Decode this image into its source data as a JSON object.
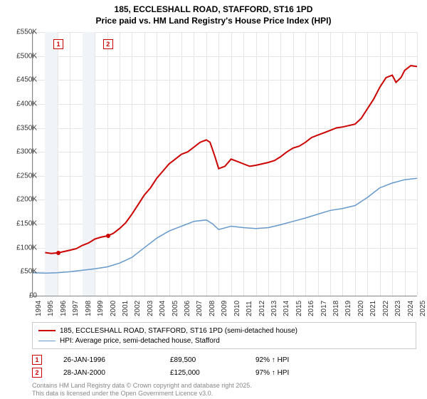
{
  "title_line1": "185, ECCLESHALL ROAD, STAFFORD, ST16 1PD",
  "title_line2": "Price paid vs. HM Land Registry's House Price Index (HPI)",
  "chart": {
    "type": "line",
    "ylim": [
      0,
      550000
    ],
    "ytick_step": 50000,
    "yticks": [
      "£0",
      "£50K",
      "£100K",
      "£150K",
      "£200K",
      "£250K",
      "£300K",
      "£350K",
      "£400K",
      "£450K",
      "£500K",
      "£550K"
    ],
    "xlim": [
      1994,
      2025
    ],
    "xticks": [
      1994,
      1995,
      1996,
      1997,
      1998,
      1999,
      2000,
      2001,
      2002,
      2003,
      2004,
      2005,
      2006,
      2007,
      2008,
      2009,
      2010,
      2011,
      2012,
      2013,
      2014,
      2015,
      2016,
      2017,
      2018,
      2019,
      2020,
      2021,
      2022,
      2023,
      2024,
      2025
    ],
    "background_color": "#ffffff",
    "grid_color": "#e5e5e5",
    "band_color": "#f0f4f8",
    "bands": [
      [
        1995,
        1996
      ],
      [
        1998,
        1999
      ]
    ],
    "series": [
      {
        "name": "property",
        "label": "185, ECCLESHALL ROAD, STAFFORD, ST16 1PD (semi-detached house)",
        "color": "#cc0000",
        "width": 2,
        "data": [
          [
            1995.0,
            90000
          ],
          [
            1995.5,
            88000
          ],
          [
            1996.07,
            89500
          ],
          [
            1996.5,
            92000
          ],
          [
            1997.0,
            95000
          ],
          [
            1997.5,
            98000
          ],
          [
            1998.0,
            105000
          ],
          [
            1998.5,
            110000
          ],
          [
            1999.0,
            118000
          ],
          [
            1999.5,
            122000
          ],
          [
            2000.07,
            125000
          ],
          [
            2000.5,
            130000
          ],
          [
            2001.0,
            140000
          ],
          [
            2001.5,
            152000
          ],
          [
            2002.0,
            170000
          ],
          [
            2002.5,
            190000
          ],
          [
            2003.0,
            210000
          ],
          [
            2003.5,
            225000
          ],
          [
            2004.0,
            245000
          ],
          [
            2004.5,
            260000
          ],
          [
            2005.0,
            275000
          ],
          [
            2005.5,
            285000
          ],
          [
            2006.0,
            295000
          ],
          [
            2006.5,
            300000
          ],
          [
            2007.0,
            310000
          ],
          [
            2007.5,
            320000
          ],
          [
            2008.0,
            325000
          ],
          [
            2008.3,
            320000
          ],
          [
            2008.7,
            290000
          ],
          [
            2009.0,
            265000
          ],
          [
            2009.5,
            270000
          ],
          [
            2010.0,
            285000
          ],
          [
            2010.5,
            280000
          ],
          [
            2011.0,
            275000
          ],
          [
            2011.5,
            270000
          ],
          [
            2012.0,
            272000
          ],
          [
            2012.5,
            275000
          ],
          [
            2013.0,
            278000
          ],
          [
            2013.5,
            282000
          ],
          [
            2014.0,
            290000
          ],
          [
            2014.5,
            300000
          ],
          [
            2015.0,
            308000
          ],
          [
            2015.5,
            312000
          ],
          [
            2016.0,
            320000
          ],
          [
            2016.5,
            330000
          ],
          [
            2017.0,
            335000
          ],
          [
            2017.5,
            340000
          ],
          [
            2018.0,
            345000
          ],
          [
            2018.5,
            350000
          ],
          [
            2019.0,
            352000
          ],
          [
            2019.5,
            355000
          ],
          [
            2020.0,
            358000
          ],
          [
            2020.5,
            370000
          ],
          [
            2021.0,
            390000
          ],
          [
            2021.5,
            410000
          ],
          [
            2022.0,
            435000
          ],
          [
            2022.5,
            455000
          ],
          [
            2023.0,
            460000
          ],
          [
            2023.3,
            445000
          ],
          [
            2023.7,
            455000
          ],
          [
            2024.0,
            470000
          ],
          [
            2024.5,
            480000
          ],
          [
            2025.0,
            478000
          ]
        ]
      },
      {
        "name": "hpi",
        "label": "HPI: Average price, semi-detached house, Stafford",
        "color": "#6699cc",
        "width": 1.5,
        "data": [
          [
            1994.0,
            48000
          ],
          [
            1995.0,
            47000
          ],
          [
            1996.0,
            48000
          ],
          [
            1997.0,
            50000
          ],
          [
            1998.0,
            53000
          ],
          [
            1999.0,
            56000
          ],
          [
            2000.0,
            60000
          ],
          [
            2001.0,
            68000
          ],
          [
            2002.0,
            80000
          ],
          [
            2003.0,
            100000
          ],
          [
            2004.0,
            120000
          ],
          [
            2005.0,
            135000
          ],
          [
            2006.0,
            145000
          ],
          [
            2007.0,
            155000
          ],
          [
            2008.0,
            158000
          ],
          [
            2008.5,
            150000
          ],
          [
            2009.0,
            138000
          ],
          [
            2010.0,
            145000
          ],
          [
            2011.0,
            142000
          ],
          [
            2012.0,
            140000
          ],
          [
            2013.0,
            142000
          ],
          [
            2014.0,
            148000
          ],
          [
            2015.0,
            155000
          ],
          [
            2016.0,
            162000
          ],
          [
            2017.0,
            170000
          ],
          [
            2018.0,
            178000
          ],
          [
            2019.0,
            182000
          ],
          [
            2020.0,
            188000
          ],
          [
            2021.0,
            205000
          ],
          [
            2022.0,
            225000
          ],
          [
            2023.0,
            235000
          ],
          [
            2024.0,
            242000
          ],
          [
            2025.0,
            245000
          ]
        ]
      }
    ],
    "sale_markers": [
      {
        "n": "1",
        "year": 1996.07,
        "top_y": 535000
      },
      {
        "n": "2",
        "year": 2000.07,
        "top_y": 535000
      }
    ],
    "sale_dots": [
      {
        "year": 1996.07,
        "value": 89500
      },
      {
        "year": 2000.07,
        "value": 125000
      }
    ]
  },
  "legend": {
    "series1": "185, ECCLESHALL ROAD, STAFFORD, ST16 1PD (semi-detached house)",
    "series2": "HPI: Average price, semi-detached house, Stafford"
  },
  "sales": [
    {
      "n": "1",
      "date": "26-JAN-1996",
      "price": "£89,500",
      "hpi": "92% ↑ HPI"
    },
    {
      "n": "2",
      "date": "28-JAN-2000",
      "price": "£125,000",
      "hpi": "97% ↑ HPI"
    }
  ],
  "footer1": "Contains HM Land Registry data © Crown copyright and database right 2025.",
  "footer2": "This data is licensed under the Open Government Licence v3.0."
}
